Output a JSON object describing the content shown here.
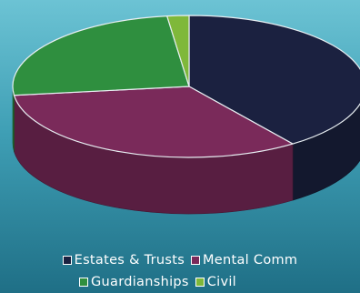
{
  "chart_data": {
    "type": "pie",
    "categories": [
      "Estates & Trusts",
      "Mental Comm",
      "Guardianships",
      "Civil"
    ],
    "values": [
      40,
      33,
      25,
      2
    ],
    "colors": [
      "#1b2140",
      "#7a2a5a",
      "#2f8f3f",
      "#7fb83a"
    ],
    "legend_placement": "bottom",
    "legend": {
      "row1": [
        "Estates & Trusts",
        "Mental Comm"
      ],
      "row2": [
        "Guardianships",
        "Civil"
      ]
    }
  }
}
